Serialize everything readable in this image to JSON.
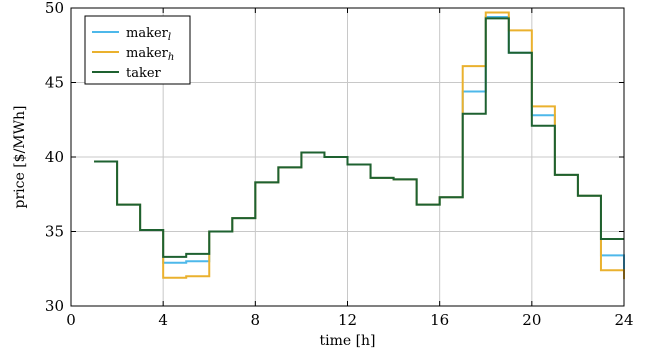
{
  "chart_data": {
    "type": "line",
    "step": "post",
    "xlabel": "time [h]",
    "ylabel": "price [$/MWh]",
    "xlim": [
      0,
      24
    ],
    "ylim": [
      30,
      50
    ],
    "xticks": [
      0,
      4,
      8,
      12,
      16,
      20,
      24
    ],
    "yticks": [
      30,
      35,
      40,
      45,
      50
    ],
    "grid": true,
    "legend_position": "top-left",
    "x": [
      1,
      2,
      3,
      4,
      5,
      6,
      7,
      8,
      9,
      10,
      11,
      12,
      13,
      14,
      15,
      16,
      17,
      18,
      19,
      20,
      21,
      22,
      23,
      24
    ],
    "series": [
      {
        "name": "maker",
        "subscript": "l",
        "color": "#4db8ea",
        "values": [
          39.7,
          36.8,
          35.1,
          32.9,
          33.0,
          35.0,
          35.9,
          38.3,
          39.3,
          40.3,
          40.0,
          39.5,
          38.6,
          38.5,
          36.8,
          37.3,
          44.4,
          49.4,
          47.0,
          42.8,
          38.8,
          37.4,
          33.4,
          32.0
        ]
      },
      {
        "name": "maker",
        "subscript": "h",
        "color": "#eab12e",
        "values": [
          39.7,
          36.8,
          35.1,
          31.9,
          32.0,
          35.0,
          35.9,
          38.3,
          39.3,
          40.3,
          40.0,
          39.5,
          38.6,
          38.5,
          36.8,
          37.3,
          46.1,
          49.7,
          48.5,
          43.4,
          38.8,
          37.4,
          32.4,
          31.8
        ]
      },
      {
        "name": "taker",
        "subscript": "",
        "color": "#1e6130",
        "values": [
          39.7,
          36.8,
          35.1,
          33.3,
          33.5,
          35.0,
          35.9,
          38.3,
          39.3,
          40.3,
          40.0,
          39.5,
          38.6,
          38.5,
          36.8,
          37.3,
          42.9,
          49.3,
          47.0,
          42.1,
          38.8,
          37.4,
          34.5,
          34.5
        ]
      }
    ]
  }
}
